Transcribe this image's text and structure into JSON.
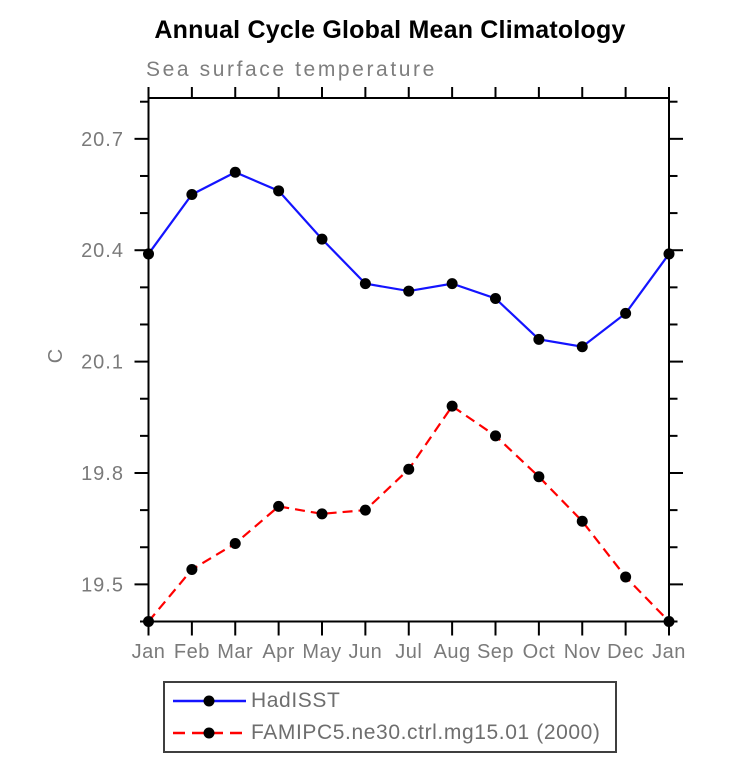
{
  "page": {
    "background_color": "#ffffff"
  },
  "chart_data": {
    "type": "line",
    "title": "Annual Cycle Global Mean Climatology",
    "subtitle": "Sea surface temperature",
    "ylabel": "C",
    "xlabel": "",
    "categories": [
      "Jan",
      "Feb",
      "Mar",
      "Apr",
      "May",
      "Jun",
      "Jul",
      "Aug",
      "Sep",
      "Oct",
      "Nov",
      "Dec",
      "Jan"
    ],
    "ylim": [
      19.4,
      20.81
    ],
    "y_ticks_major": [
      19.5,
      19.8,
      20.1,
      20.4,
      20.7
    ],
    "y_tick_minor_step": 0.1,
    "grid": false,
    "legend_position": "bottom",
    "colors": {
      "axis": "#000000",
      "tick_label_text": "#7a7a7a",
      "subtitle_text": "#7e7e7e",
      "legend_text": "#6e6e6e",
      "legend_border": "#3f3f3f",
      "title_text": "#000000",
      "marker": "#000000"
    },
    "series": [
      {
        "name": "HadISST",
        "color": "#1414ff",
        "line_style": "solid",
        "marker": "filled-circle",
        "marker_color": "#000000",
        "values": [
          20.39,
          20.55,
          20.61,
          20.56,
          20.43,
          20.31,
          20.29,
          20.31,
          20.27,
          20.16,
          20.14,
          20.23,
          20.39
        ]
      },
      {
        "name": "FAMIPC5.ne30.ctrl.mg15.01 (2000)",
        "color": "#ff0000",
        "line_style": "dashed",
        "marker": "filled-circle",
        "marker_color": "#000000",
        "values": [
          19.4,
          19.54,
          19.61,
          19.71,
          19.69,
          19.7,
          19.81,
          19.98,
          19.9,
          19.79,
          19.67,
          19.52,
          19.4
        ]
      }
    ]
  }
}
